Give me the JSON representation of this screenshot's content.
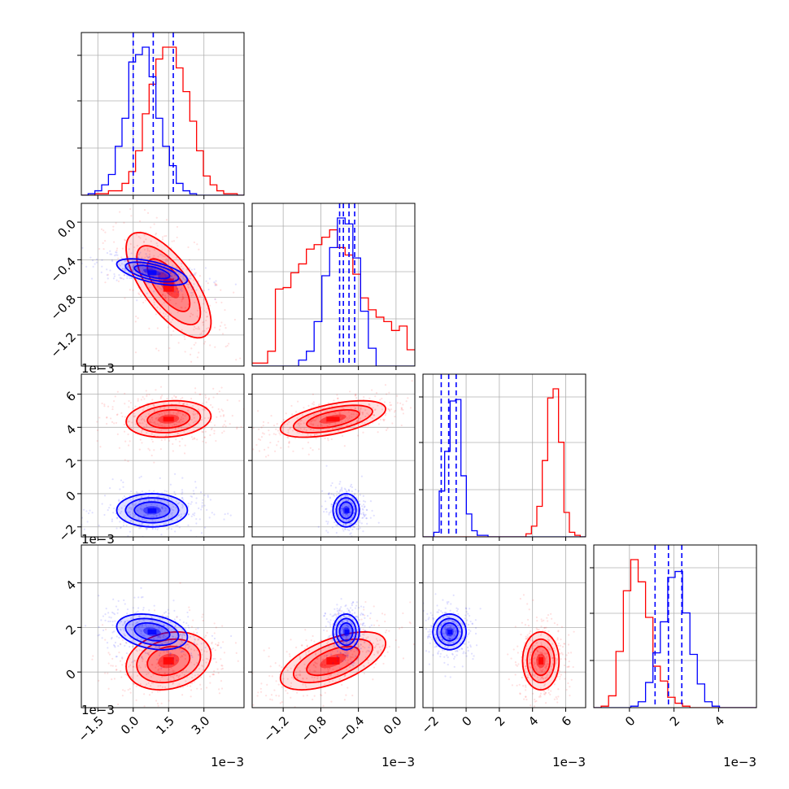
{
  "chart_data": {
    "type": "corner",
    "title": "",
    "grid": true,
    "colors": {
      "red": "#ff0000",
      "blue": "#0000ff"
    },
    "parameters": [
      {
        "range": [
          -2.2,
          4.7
        ],
        "ticks": [
          -1.5,
          0.0,
          1.5,
          3.0
        ],
        "tick_labels": [
          "−1.5",
          "0.0",
          "1.5",
          "3.0"
        ],
        "offset": "1e−3"
      },
      {
        "range": [
          -1.53,
          0.2
        ],
        "ticks": [
          -1.2,
          -0.8,
          -0.4,
          0.0
        ],
        "tick_labels": [
          "−1.2",
          "−0.8",
          "−0.4",
          "0.0"
        ],
        "offset": "1e−3"
      },
      {
        "range": [
          -2.6,
          7.2
        ],
        "ticks": [
          -2,
          0,
          2,
          4,
          6
        ],
        "tick_labels": [
          "−2",
          "0",
          "2",
          "4",
          "6"
        ],
        "offset": "1e−3"
      },
      {
        "range": [
          -1.6,
          5.7
        ],
        "ticks": [
          0,
          2,
          4
        ],
        "tick_labels": [
          "0",
          "2",
          "4"
        ],
        "offset": "1e−3"
      }
    ],
    "series": [
      {
        "color": "red",
        "means": [
          1.5,
          -0.67,
          4.5,
          0.5
        ],
        "sigmas": [
          0.9,
          0.28,
          0.55,
          0.65
        ],
        "correlations": {
          "1-0": -0.7,
          "2-0": 0.15,
          "2-1": 0.55,
          "3-0": 0.2,
          "3-1": 0.6,
          "3-2": 0.0
        },
        "diag_hist": [
          {
            "edges": [
              -2.2,
              4.7
            ],
            "counts": [
              0,
              0,
              1,
              1,
              3,
              3,
              8,
              16,
              30,
              55,
              75,
              92,
              100,
              100,
              86,
              70,
              50,
              30,
              13,
              7,
              3,
              1,
              1,
              0
            ]
          },
          {
            "edges": [
              -1.53,
              0.2
            ],
            "counts": [
              2,
              2,
              10,
              52,
              53,
              63,
              69,
              79,
              82,
              87,
              92,
              80,
              75,
              62,
              46,
              38,
              33,
              30,
              24,
              27,
              11
            ]
          },
          {
            "edges": [
              -2.6,
              7.2
            ],
            "counts": [
              0,
              0,
              0,
              0,
              0,
              0,
              0,
              0,
              0,
              0,
              0,
              0,
              0,
              0,
              0,
              0,
              0,
              0,
              0,
              2,
              7,
              20,
              50,
              91,
              97,
              62,
              16,
              3,
              1,
              0
            ]
          },
          {
            "edges": [
              -1.6,
              5.7
            ],
            "counts": [
              0,
              1,
              8,
              38,
              79,
              100,
              85,
              61,
              28,
              18,
              7,
              3,
              1,
              0,
              0,
              0,
              0,
              0,
              0,
              0,
              0,
              0
            ]
          }
        ]
      },
      {
        "color": "blue",
        "means": [
          0.8,
          -0.53,
          -1.0,
          1.8
        ],
        "sigmas": [
          0.75,
          0.07,
          0.5,
          0.4
        ],
        "correlations": {
          "1-0": -0.6,
          "2-0": 0.0,
          "2-1": 0.0,
          "3-0": -0.3,
          "3-1": 0.0,
          "3-2": 0.0
        },
        "diag_hist": [
          {
            "edges": [
              -2.2,
              4.7
            ],
            "counts": [
              0,
              1,
              3,
              7,
              14,
              33,
              52,
              90,
              95,
              100,
              80,
              52,
              33,
              20,
              8,
              3,
              1,
              0,
              0,
              0,
              0,
              0,
              0,
              0
            ]
          },
          {
            "edges": [
              -1.53,
              0.2
            ],
            "counts": [
              0,
              0,
              0,
              0,
              0,
              0,
              4,
              10,
              30,
              61,
              80,
              100,
              96,
              73,
              37,
              12,
              0,
              0,
              0,
              0,
              0
            ]
          },
          {
            "edges": [
              -2.6,
              7.2
            ],
            "counts": [
              0,
              0,
              3,
              30,
              56,
              89,
              90,
              40,
              15,
              4,
              1,
              1,
              0,
              0,
              0,
              0,
              0,
              0,
              0,
              0,
              0,
              0,
              0,
              0,
              0,
              0,
              0,
              0,
              0,
              0
            ]
          },
          {
            "edges": [
              -1.6,
              5.7
            ],
            "counts": [
              0,
              0,
              0,
              0,
              0,
              1,
              4,
              17,
              37,
              58,
              88,
              92,
              64,
              36,
              16,
              4,
              1,
              0,
              0,
              0,
              0,
              0
            ]
          }
        ],
        "quantiles": [
          [
            0.0,
            0.85,
            1.7
          ],
          [
            -0.6,
            -0.56,
            -0.5,
            -0.44
          ],
          [
            -1.5,
            -1.05,
            -0.6
          ],
          [
            1.15,
            1.75,
            2.35
          ]
        ]
      }
    ]
  }
}
